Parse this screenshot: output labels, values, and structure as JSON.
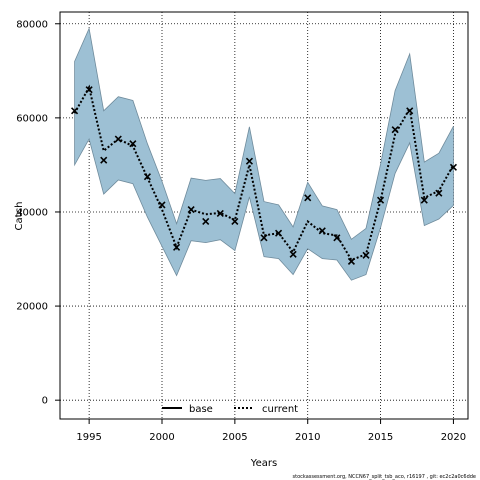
{
  "chart_data": {
    "type": "line",
    "xlabel": "Years",
    "ylabel": "Catch",
    "xlim": [
      1993,
      2021
    ],
    "ylim": [
      -4000,
      82500
    ],
    "x_ticks": [
      1995,
      2000,
      2005,
      2010,
      2015,
      2020
    ],
    "y_ticks": [
      0,
      20000,
      40000,
      60000,
      80000
    ],
    "grid": true,
    "legend_position": "bottom-center",
    "colors": {
      "band_fill": "#9dc0d4",
      "band_edge": "#6f8b9c",
      "line": "#000000"
    },
    "x": [
      1994,
      1995,
      1996,
      1997,
      1998,
      1999,
      2000,
      2001,
      2002,
      2003,
      2004,
      2005,
      2006,
      2007,
      2008,
      2009,
      2010,
      2011,
      2012,
      2013,
      2014,
      2015,
      2016,
      2017,
      2018,
      2019,
      2020
    ],
    "series": [
      {
        "name": "base",
        "style": "solid",
        "band_upper": [
          72000,
          79000,
          61500,
          64500,
          63700,
          54500,
          46500,
          37500,
          47200,
          46700,
          47100,
          43900,
          58100,
          42200,
          41500,
          36800,
          46300,
          41300,
          40500,
          34200,
          36500,
          50200,
          65800,
          73600,
          50600,
          52500,
          58200
        ],
        "band_lower": [
          50000,
          55500,
          43800,
          46800,
          46000,
          38900,
          32700,
          26500,
          33900,
          33500,
          34100,
          31800,
          43200,
          30500,
          30100,
          26700,
          32200,
          30100,
          29800,
          25500,
          26700,
          36700,
          48200,
          54700,
          37100,
          38500,
          41400
        ]
      },
      {
        "name": "current",
        "style": "dotted",
        "line": [
          61000,
          66500,
          53000,
          55500,
          54000,
          47300,
          40500,
          32500,
          40500,
          39500,
          39800,
          38300,
          50000,
          35000,
          35500,
          31500,
          38000,
          35500,
          35000,
          29800,
          31000,
          42500,
          56500,
          62000,
          43000,
          44500,
          50000
        ],
        "points": [
          61500,
          66000,
          51000,
          55500,
          54500,
          47500,
          41500,
          32500,
          40500,
          38000,
          39700,
          38000,
          50800,
          34500,
          35500,
          31000,
          43000,
          36000,
          34500,
          29500,
          30800,
          42500,
          57500,
          61500,
          42500,
          44000,
          49500
        ]
      }
    ],
    "legend": [
      "base",
      "current"
    ],
    "footer": "stockassessment.org, NCCN67_split_tsb_aco, r16197 , git: ec2c2a0c6dde"
  }
}
